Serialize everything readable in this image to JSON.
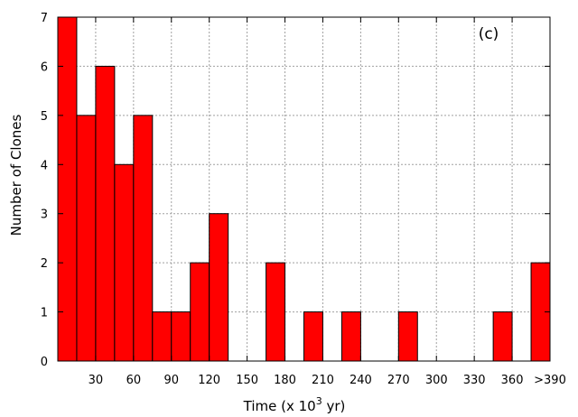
{
  "chart_data": {
    "type": "bar",
    "panel_label": "(c)",
    "xlabel_prefix": "Time (x 10",
    "xlabel_exponent": "3",
    "xlabel_suffix": " yr)",
    "ylabel": "Number of Clones",
    "ylim": [
      0,
      7
    ],
    "yticks": [
      "0",
      "1",
      "2",
      "3",
      "4",
      "5",
      "6",
      "7"
    ],
    "bin_width": 15,
    "x_start": 0,
    "x_end": 390,
    "xticks": [
      {
        "value": 30,
        "label": "30"
      },
      {
        "value": 60,
        "label": "60"
      },
      {
        "value": 90,
        "label": "90"
      },
      {
        "value": 120,
        "label": "120"
      },
      {
        "value": 150,
        "label": "150"
      },
      {
        "value": 180,
        "label": "180"
      },
      {
        "value": 210,
        "label": "210"
      },
      {
        "value": 240,
        "label": "240"
      },
      {
        "value": 270,
        "label": "270"
      },
      {
        "value": 300,
        "label": "300"
      },
      {
        "value": 330,
        "label": "330"
      },
      {
        "value": 360,
        "label": "360"
      },
      {
        "value": 390,
        "label": ">390"
      }
    ],
    "values": [
      7,
      5,
      6,
      4,
      5,
      1,
      1,
      2,
      3,
      0,
      0,
      2,
      0,
      1,
      0,
      1,
      0,
      0,
      1,
      0,
      0,
      0,
      0,
      1,
      0,
      2
    ],
    "grid": true,
    "bar_color": "#ff0000",
    "edge_color": "#000000",
    "grid_color": "#a0a0a0"
  }
}
